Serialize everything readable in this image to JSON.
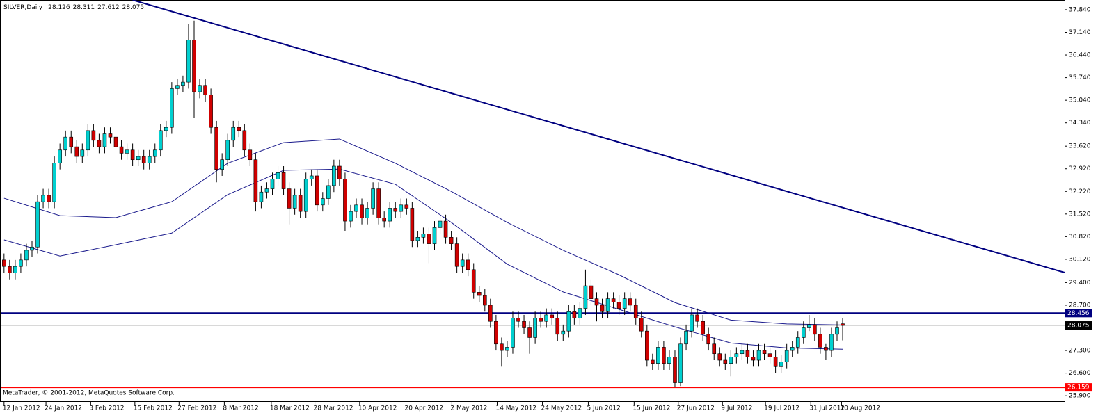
{
  "chart_data": {
    "type": "candlestick",
    "name": "SILVER,Daily",
    "copyright": "MetaTrader, © 2001-2012, MetaQuotes Software Corp.",
    "bull_color": "#00d0d0",
    "bear_color": "#d00000",
    "open": [
      30.1,
      29.9,
      29.7,
      29.9,
      30.1,
      30.4,
      30.5,
      31.9,
      32.1,
      31.9,
      33.1,
      33.5,
      33.9,
      33.6,
      33.3,
      33.5,
      34.1,
      33.8,
      33.6,
      34.0,
      33.9,
      33.6,
      33.4,
      33.5,
      33.2,
      33.3,
      33.1,
      33.3,
      33.5,
      34.1,
      34.2,
      35.4,
      35.5,
      35.6,
      36.9,
      35.3,
      35.5,
      35.2,
      34.2,
      32.9,
      33.2,
      33.8,
      34.2,
      34.1,
      33.5,
      33.2,
      31.9,
      32.2,
      32.3,
      32.6,
      32.8,
      32.3,
      31.7,
      32.1,
      31.6,
      32.6,
      32.7,
      31.8,
      32.0,
      32.4,
      33.0,
      32.6,
      31.3,
      31.6,
      31.8,
      31.4,
      31.7,
      32.3,
      31.4,
      31.3,
      31.7,
      31.6,
      31.8,
      31.7,
      30.7,
      30.8,
      30.9,
      30.6,
      31.1,
      31.3,
      30.8,
      30.6,
      29.9,
      30.1,
      29.8,
      29.1,
      29.0,
      28.7,
      28.2,
      27.5,
      27.3,
      27.4,
      28.3,
      28.2,
      28.0,
      27.7,
      28.3,
      28.2,
      28.4,
      28.3,
      27.8,
      27.9,
      28.5,
      28.3,
      28.6,
      29.3,
      28.9,
      28.7,
      28.5,
      28.9,
      28.8,
      28.6,
      28.9,
      28.7,
      28.3,
      27.9,
      27.0,
      26.9,
      27.4,
      26.9,
      27.1,
      26.3,
      27.5,
      27.9,
      28.4,
      28.2,
      27.8,
      27.5,
      27.2,
      27.0,
      26.9,
      27.1,
      27.2,
      27.3,
      27.1,
      27.0,
      27.3,
      27.2,
      27.1,
      26.8,
      26.95,
      27.3,
      27.4,
      27.7,
      28.0,
      28.1,
      27.8,
      27.4,
      27.3,
      27.8,
      28.126
    ],
    "high": [
      30.3,
      30.1,
      30.1,
      30.3,
      30.6,
      30.7,
      32.1,
      32.3,
      32.3,
      33.3,
      33.7,
      34.1,
      34.1,
      33.8,
      33.7,
      34.3,
      34.3,
      34.0,
      34.2,
      34.2,
      34.1,
      33.8,
      33.7,
      33.7,
      33.5,
      33.5,
      33.5,
      33.7,
      34.3,
      34.4,
      35.6,
      35.7,
      35.8,
      37.4,
      37.5,
      35.7,
      35.7,
      35.4,
      34.4,
      33.4,
      34.0,
      34.4,
      34.4,
      34.3,
      33.7,
      33.4,
      32.4,
      32.5,
      32.8,
      33.0,
      33.0,
      32.5,
      32.3,
      32.3,
      32.8,
      32.9,
      32.9,
      32.2,
      32.6,
      33.2,
      33.2,
      32.8,
      31.8,
      32.0,
      32.0,
      31.9,
      32.5,
      32.5,
      31.6,
      31.9,
      31.9,
      32.0,
      32.0,
      31.9,
      31.0,
      31.1,
      31.1,
      31.3,
      31.5,
      31.5,
      31.0,
      30.8,
      30.3,
      30.3,
      30.0,
      29.3,
      29.2,
      28.9,
      28.4,
      27.7,
      27.6,
      28.5,
      28.5,
      28.4,
      28.2,
      28.5,
      28.5,
      28.6,
      28.6,
      28.5,
      28.1,
      28.7,
      28.7,
      28.8,
      29.8,
      29.5,
      29.1,
      28.9,
      29.1,
      29.1,
      29.0,
      29.1,
      29.1,
      28.9,
      28.5,
      28.1,
      27.2,
      27.6,
      27.6,
      27.3,
      27.3,
      27.7,
      28.1,
      28.6,
      28.6,
      28.4,
      28.0,
      27.7,
      27.4,
      27.2,
      27.3,
      27.4,
      27.5,
      27.5,
      27.3,
      27.5,
      27.5,
      27.4,
      27.3,
      27.15,
      27.5,
      27.6,
      27.9,
      28.2,
      28.4,
      28.3,
      28.0,
      27.5,
      28.0,
      28.2,
      28.311
    ],
    "low": [
      29.7,
      29.5,
      29.5,
      29.7,
      29.9,
      30.2,
      30.3,
      31.7,
      31.7,
      31.7,
      32.9,
      33.3,
      33.4,
      33.1,
      33.1,
      33.3,
      33.6,
      33.4,
      33.4,
      33.7,
      33.4,
      33.2,
      33.2,
      33.0,
      33.0,
      32.9,
      32.9,
      33.1,
      33.3,
      33.9,
      34.0,
      35.2,
      35.3,
      35.4,
      34.5,
      35.1,
      35.0,
      34.0,
      32.5,
      32.7,
      33.0,
      33.6,
      33.9,
      33.3,
      33.0,
      31.6,
      31.7,
      32.0,
      32.1,
      32.4,
      32.1,
      31.2,
      31.5,
      31.4,
      31.4,
      32.4,
      31.6,
      31.6,
      31.8,
      32.2,
      32.4,
      31.0,
      31.1,
      31.4,
      31.2,
      31.2,
      31.5,
      31.2,
      31.1,
      31.1,
      31.4,
      31.4,
      31.5,
      30.5,
      30.5,
      30.6,
      30.0,
      30.4,
      30.9,
      30.6,
      30.4,
      29.7,
      29.7,
      29.6,
      28.9,
      28.8,
      28.5,
      28.0,
      27.3,
      26.8,
      27.1,
      27.2,
      28.0,
      27.8,
      27.2,
      27.5,
      28.0,
      28.0,
      28.1,
      27.6,
      27.6,
      27.7,
      28.1,
      28.1,
      28.4,
      28.7,
      28.2,
      28.3,
      28.3,
      28.6,
      28.4,
      28.4,
      28.5,
      28.1,
      27.7,
      26.8,
      26.7,
      26.7,
      26.7,
      26.7,
      26.16,
      26.2,
      27.3,
      27.7,
      28.0,
      27.6,
      27.3,
      27.0,
      26.8,
      26.7,
      26.5,
      26.9,
      27.0,
      26.9,
      26.8,
      26.8,
      27.0,
      26.9,
      26.6,
      26.6,
      26.75,
      27.1,
      27.2,
      27.5,
      27.9,
      27.6,
      27.2,
      27.0,
      27.1,
      27.6,
      27.612
    ],
    "close": [
      29.9,
      29.7,
      29.9,
      30.1,
      30.4,
      30.5,
      31.9,
      32.1,
      31.9,
      33.1,
      33.5,
      33.9,
      33.6,
      33.3,
      33.5,
      34.1,
      33.8,
      33.6,
      34.0,
      33.9,
      33.6,
      33.4,
      33.5,
      33.2,
      33.3,
      33.1,
      33.3,
      33.5,
      34.1,
      34.2,
      35.4,
      35.5,
      35.6,
      36.9,
      35.3,
      35.5,
      35.2,
      34.2,
      32.9,
      33.2,
      33.8,
      34.2,
      34.1,
      33.5,
      33.2,
      31.9,
      32.2,
      32.3,
      32.6,
      32.8,
      32.3,
      31.7,
      32.1,
      31.6,
      32.6,
      32.7,
      31.8,
      32.0,
      32.4,
      33.0,
      32.6,
      31.3,
      31.6,
      31.8,
      31.4,
      31.7,
      32.3,
      31.4,
      31.3,
      31.7,
      31.6,
      31.8,
      31.7,
      30.7,
      30.8,
      30.9,
      30.6,
      31.1,
      31.3,
      30.8,
      30.6,
      29.9,
      30.1,
      29.8,
      29.1,
      29.0,
      28.7,
      28.2,
      27.5,
      27.3,
      27.4,
      28.3,
      28.2,
      28.0,
      27.7,
      28.3,
      28.2,
      28.4,
      28.3,
      27.8,
      27.9,
      28.5,
      28.3,
      28.6,
      29.3,
      28.9,
      28.7,
      28.5,
      28.9,
      28.8,
      28.6,
      28.9,
      28.7,
      28.3,
      27.9,
      27.0,
      26.9,
      27.4,
      26.9,
      27.1,
      26.3,
      27.5,
      27.9,
      28.4,
      28.2,
      27.8,
      27.5,
      27.2,
      27.0,
      26.9,
      27.1,
      27.2,
      27.3,
      27.1,
      27.0,
      27.3,
      27.2,
      27.1,
      26.8,
      26.95,
      27.3,
      27.4,
      27.7,
      28.0,
      28.1,
      27.8,
      27.4,
      27.3,
      27.8,
      28.0,
      28.075
    ],
    "lines": [
      {
        "color": "#1a1a8c",
        "x": [
          0,
          10,
          20,
          30,
          40,
          50,
          60,
          70,
          80,
          90,
          100,
          110,
          120,
          130,
          140,
          150
        ],
        "values": [
          32.01,
          31.47,
          31.41,
          31.9,
          33.09,
          33.73,
          33.84,
          33.09,
          32.22,
          31.26,
          30.4,
          29.64,
          28.78,
          28.24,
          28.12,
          28.09
        ]
      },
      {
        "color": "#1a1a8c",
        "x": [
          0,
          10,
          20,
          30,
          40,
          50,
          60,
          70,
          80,
          90,
          100,
          110,
          120,
          130,
          140,
          150
        ],
        "values": [
          30.72,
          30.22,
          30.57,
          30.93,
          32.12,
          32.87,
          32.91,
          32.44,
          31.26,
          29.97,
          29.11,
          28.57,
          28.03,
          27.53,
          27.38,
          27.34
        ]
      }
    ],
    "trendline": {
      "color": "#000080",
      "x": [
        23.0,
        189.7
      ],
      "values": [
        38.14,
        29.71
      ]
    },
    "hlines": [
      {
        "value": 28.456,
        "label": "28.456",
        "color": "#000080"
      },
      {
        "value": 26.159,
        "label": "26.159",
        "color": "#ff0000"
      }
    ],
    "price_line_color": "#b0b0b0",
    "ylim": [
      25.71,
      38.14
    ],
    "xlim": [
      -0.6,
      189.7
    ],
    "yticks": [
      {
        "value": 37.84,
        "label": "37.840"
      },
      {
        "value": 37.14,
        "label": "37.140"
      },
      {
        "value": 36.44,
        "label": "36.440"
      },
      {
        "value": 35.74,
        "label": "35.740"
      },
      {
        "value": 35.04,
        "label": "35.040"
      },
      {
        "value": 34.34,
        "label": "34.340"
      },
      {
        "value": 33.62,
        "label": "33.620"
      },
      {
        "value": 32.92,
        "label": "32.920"
      },
      {
        "value": 32.22,
        "label": "32.220"
      },
      {
        "value": 31.52,
        "label": "31.520"
      },
      {
        "value": 30.82,
        "label": "30.820"
      },
      {
        "value": 30.12,
        "label": "30.120"
      },
      {
        "value": 29.4,
        "label": "29.400"
      },
      {
        "value": 28.7,
        "label": "28.700"
      },
      {
        "value": 27.3,
        "label": "27.300"
      },
      {
        "value": 26.6,
        "label": "26.600"
      },
      {
        "value": 25.9,
        "label": "25.900"
      }
    ],
    "xticks": [
      {
        "value": 0,
        "label": "12 Jan 2012"
      },
      {
        "value": 7.5,
        "label": "24 Jan 2012"
      },
      {
        "value": 15.5,
        "label": "3 Feb 2012"
      },
      {
        "value": 23.4,
        "label": "15 Feb 2012"
      },
      {
        "value": 31.3,
        "label": "27 Feb 2012"
      },
      {
        "value": 39.4,
        "label": "8 Mar 2012"
      },
      {
        "value": 47.8,
        "label": "18 Mar 2012"
      },
      {
        "value": 55.6,
        "label": "28 Mar 2012"
      },
      {
        "value": 63.6,
        "label": "10 Apr 2012"
      },
      {
        "value": 71.9,
        "label": "20 Apr 2012"
      },
      {
        "value": 80.1,
        "label": "2 May 2012"
      },
      {
        "value": 88.2,
        "label": "14 May 2012"
      },
      {
        "value": 96.3,
        "label": "24 May 2012"
      },
      {
        "value": 104.5,
        "label": "5 Jun 2012"
      },
      {
        "value": 112.7,
        "label": "15 Jun 2012"
      },
      {
        "value": 120.6,
        "label": "27 Jun 2012"
      },
      {
        "value": 128.5,
        "label": "9 Jul 2012"
      },
      {
        "value": 136.2,
        "label": "19 Jul 2012"
      },
      {
        "value": 144.3,
        "label": "31 Jul 2012"
      },
      {
        "value": 149.8,
        "label": "10 Aug 2012"
      }
    ]
  }
}
